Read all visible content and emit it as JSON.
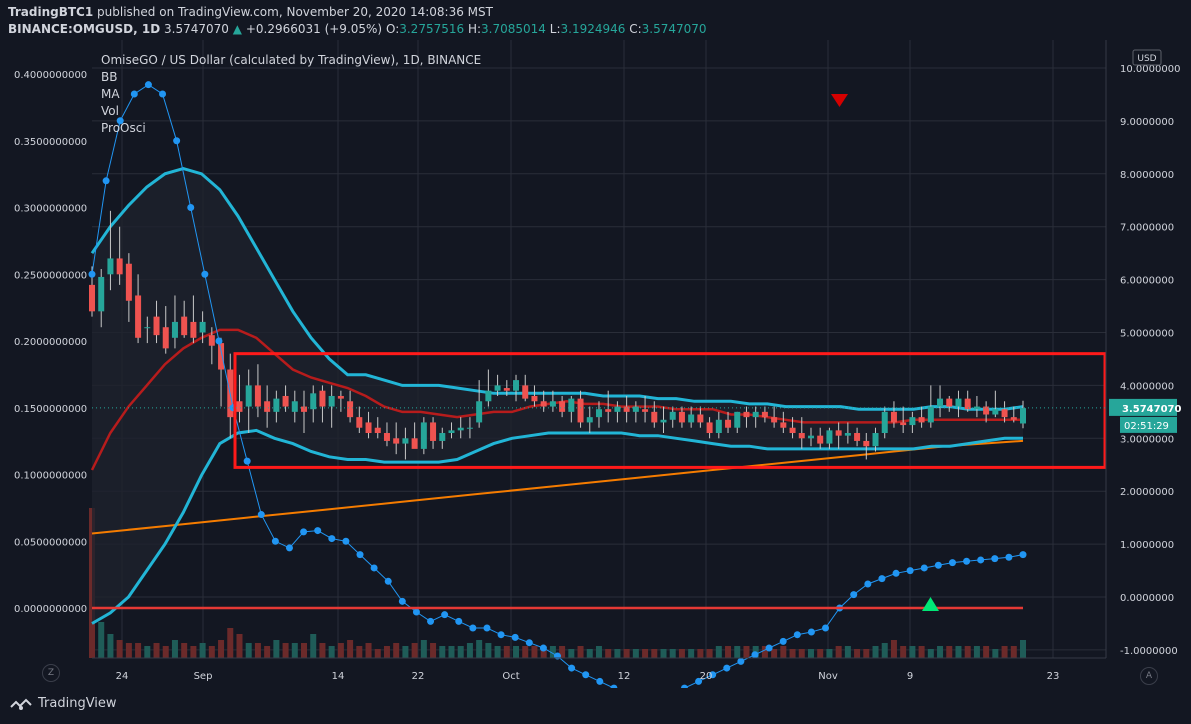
{
  "header": {
    "publisher": "TradingBTC1",
    "published_text": "published on TradingView.com, November 20, 2020 14:08:36 MST",
    "symbol": "BINANCE:OMGUSD, 1D",
    "last": "3.5747070",
    "change": "+0.2966031 (+9.05%)",
    "open_label": "O:",
    "open": "3.2757516",
    "high_label": "H:",
    "high": "3.7085014",
    "low_label": "L:",
    "low": "3.1924946",
    "close_label": "C:",
    "close": "3.5747070"
  },
  "overlay": {
    "title": "OmiseGO / US Dollar (calculated by TradingView), 1D, BINANCE",
    "indicators": [
      "BB",
      "MA",
      "Vol",
      "ProOsci"
    ]
  },
  "price_axis": {
    "currency": "USD",
    "ticks": [
      "10.0000000",
      "9.0000000",
      "8.0000000",
      "7.0000000",
      "6.0000000",
      "5.0000000",
      "4.0000000",
      "3.0000000",
      "2.0000000",
      "1.0000000",
      "0.0000000",
      "-1.0000000"
    ],
    "last_price_label": "3.5747070",
    "countdown": "02:51:29"
  },
  "osc_axis": {
    "ticks": [
      "0.4000000000",
      "0.3500000000",
      "0.3000000000",
      "0.2500000000",
      "0.2000000000",
      "0.1500000000",
      "0.1000000000",
      "0.0500000000",
      "0.0000000000"
    ]
  },
  "time_axis": {
    "ticks": [
      "24",
      "Sep",
      "14",
      "22",
      "Oct",
      "12",
      "20",
      "Nov",
      "9",
      "23"
    ]
  },
  "footer": {
    "brand": "TradingView",
    "left_btn": "Z",
    "right_btn": "A"
  },
  "colors": {
    "background": "#131722",
    "up": "#26a69a",
    "down": "#ef5350",
    "bb": "#22b5d6",
    "ma": "#b71c1c",
    "ma_long": "#f57c00",
    "oscillator": "#2196f3",
    "box": "#ff1a1a"
  },
  "chart_data": {
    "type": "candlestick",
    "x_dates": "2020-08-20 .. 2020-11-20 (daily)",
    "ylim": [
      -1.0,
      10.0
    ],
    "candles_ohlc": [
      [
        5.9,
        6.25,
        5.3,
        5.4
      ],
      [
        5.4,
        6.2,
        5.1,
        6.05
      ],
      [
        6.1,
        7.3,
        5.8,
        6.4
      ],
      [
        6.4,
        7.0,
        5.9,
        6.1
      ],
      [
        6.3,
        6.5,
        5.2,
        5.6
      ],
      [
        5.7,
        6.1,
        4.8,
        4.9
      ],
      [
        5.1,
        5.3,
        4.8,
        5.1
      ],
      [
        5.3,
        5.6,
        4.8,
        4.95
      ],
      [
        5.1,
        5.5,
        4.6,
        4.7
      ],
      [
        4.9,
        5.7,
        4.7,
        5.2
      ],
      [
        5.3,
        5.6,
        4.9,
        4.95
      ],
      [
        5.2,
        5.7,
        4.8,
        4.9
      ],
      [
        5.0,
        5.4,
        4.8,
        5.2
      ],
      [
        4.95,
        5.1,
        4.4,
        4.75
      ],
      [
        4.8,
        4.9,
        3.6,
        4.3
      ],
      [
        4.3,
        4.6,
        3.0,
        3.4
      ],
      [
        3.7,
        4.2,
        3.3,
        3.5
      ],
      [
        3.6,
        4.3,
        3.1,
        4.0
      ],
      [
        4.0,
        4.4,
        3.4,
        3.6
      ],
      [
        3.7,
        4.0,
        3.2,
        3.5
      ],
      [
        3.5,
        3.9,
        3.3,
        3.75
      ],
      [
        3.8,
        4.0,
        3.5,
        3.6
      ],
      [
        3.5,
        3.9,
        3.3,
        3.7
      ],
      [
        3.6,
        3.9,
        3.1,
        3.5
      ],
      [
        3.55,
        4.0,
        3.3,
        3.85
      ],
      [
        3.9,
        4.0,
        3.3,
        3.6
      ],
      [
        3.6,
        4.0,
        3.2,
        3.8
      ],
      [
        3.8,
        3.9,
        3.5,
        3.75
      ],
      [
        3.7,
        3.9,
        3.3,
        3.4
      ],
      [
        3.4,
        3.6,
        3.1,
        3.2
      ],
      [
        3.3,
        3.5,
        3.0,
        3.1
      ],
      [
        3.2,
        3.4,
        3.0,
        3.1
      ],
      [
        3.1,
        3.3,
        2.85,
        2.95
      ],
      [
        3.0,
        3.3,
        2.7,
        2.9
      ],
      [
        2.9,
        3.2,
        2.6,
        3.0
      ],
      [
        3.0,
        3.3,
        2.9,
        2.8
      ],
      [
        2.8,
        3.4,
        2.7,
        3.3
      ],
      [
        3.3,
        3.4,
        2.8,
        2.95
      ],
      [
        2.95,
        3.2,
        2.8,
        3.1
      ],
      [
        3.1,
        3.3,
        3.0,
        3.15
      ],
      [
        3.15,
        3.4,
        3.0,
        3.2
      ],
      [
        3.2,
        3.4,
        3.0,
        3.2
      ],
      [
        3.3,
        4.1,
        3.2,
        3.7
      ],
      [
        3.7,
        4.3,
        3.6,
        3.9
      ],
      [
        3.9,
        4.2,
        3.8,
        4.0
      ],
      [
        3.95,
        4.1,
        3.8,
        3.9
      ],
      [
        3.9,
        4.2,
        3.7,
        4.1
      ],
      [
        4.0,
        4.2,
        3.7,
        3.75
      ],
      [
        3.8,
        4.0,
        3.6,
        3.7
      ],
      [
        3.7,
        3.9,
        3.5,
        3.6
      ],
      [
        3.6,
        3.9,
        3.5,
        3.7
      ],
      [
        3.7,
        3.8,
        3.4,
        3.5
      ],
      [
        3.5,
        3.8,
        3.3,
        3.75
      ],
      [
        3.75,
        3.9,
        3.2,
        3.3
      ],
      [
        3.3,
        3.6,
        3.1,
        3.4
      ],
      [
        3.4,
        3.7,
        3.2,
        3.55
      ],
      [
        3.55,
        3.9,
        3.3,
        3.5
      ],
      [
        3.5,
        3.7,
        3.3,
        3.6
      ],
      [
        3.6,
        3.8,
        3.3,
        3.5
      ],
      [
        3.5,
        3.7,
        3.3,
        3.6
      ],
      [
        3.55,
        3.8,
        3.3,
        3.5
      ],
      [
        3.5,
        3.7,
        3.2,
        3.3
      ],
      [
        3.3,
        3.6,
        3.1,
        3.35
      ],
      [
        3.35,
        3.6,
        3.2,
        3.5
      ],
      [
        3.5,
        3.6,
        3.2,
        3.3
      ],
      [
        3.3,
        3.6,
        3.2,
        3.45
      ],
      [
        3.45,
        3.6,
        3.2,
        3.3
      ],
      [
        3.3,
        3.4,
        3.0,
        3.1
      ],
      [
        3.1,
        3.5,
        3.0,
        3.35
      ],
      [
        3.35,
        3.5,
        3.1,
        3.2
      ],
      [
        3.2,
        3.5,
        3.1,
        3.5
      ],
      [
        3.5,
        3.6,
        3.2,
        3.4
      ],
      [
        3.4,
        3.6,
        3.2,
        3.5
      ],
      [
        3.5,
        3.6,
        3.3,
        3.4
      ],
      [
        3.4,
        3.6,
        3.2,
        3.3
      ],
      [
        3.3,
        3.5,
        3.1,
        3.2
      ],
      [
        3.2,
        3.4,
        3.0,
        3.1
      ],
      [
        3.1,
        3.4,
        2.8,
        3.0
      ],
      [
        3.0,
        3.2,
        2.85,
        3.05
      ],
      [
        3.05,
        3.2,
        2.8,
        2.9
      ],
      [
        2.9,
        3.2,
        2.8,
        3.15
      ],
      [
        3.15,
        3.3,
        2.8,
        3.05
      ],
      [
        3.05,
        3.3,
        2.9,
        3.1
      ],
      [
        3.1,
        3.2,
        2.85,
        2.95
      ],
      [
        2.95,
        3.1,
        2.6,
        2.85
      ],
      [
        2.85,
        3.2,
        2.75,
        3.1
      ],
      [
        3.1,
        3.6,
        3.0,
        3.5
      ],
      [
        3.5,
        3.7,
        3.2,
        3.3
      ],
      [
        3.3,
        3.6,
        3.1,
        3.25
      ],
      [
        3.25,
        3.5,
        3.1,
        3.4
      ],
      [
        3.4,
        3.6,
        3.2,
        3.3
      ],
      [
        3.3,
        4.0,
        3.2,
        3.6
      ],
      [
        3.6,
        4.0,
        3.4,
        3.75
      ],
      [
        3.75,
        3.8,
        3.5,
        3.6
      ],
      [
        3.6,
        3.9,
        3.4,
        3.75
      ],
      [
        3.75,
        3.9,
        3.5,
        3.55
      ],
      [
        3.55,
        3.8,
        3.4,
        3.6
      ],
      [
        3.6,
        3.7,
        3.3,
        3.45
      ],
      [
        3.45,
        3.9,
        3.4,
        3.55
      ],
      [
        3.55,
        3.7,
        3.3,
        3.4
      ],
      [
        3.4,
        3.6,
        3.3,
        3.35
      ],
      [
        3.28,
        3.71,
        3.19,
        3.57
      ]
    ],
    "bollinger_upper": [
      6.5,
      7.0,
      7.4,
      7.75,
      8.0,
      8.1,
      8.0,
      7.7,
      7.2,
      6.6,
      6.0,
      5.4,
      4.9,
      4.5,
      4.2,
      4.2,
      4.1,
      4.0,
      4.0,
      4.0,
      3.95,
      3.9,
      3.85,
      3.85,
      3.85,
      3.85,
      3.85,
      3.85,
      3.8,
      3.8,
      3.8,
      3.75,
      3.75,
      3.7,
      3.7,
      3.7,
      3.65,
      3.65,
      3.6,
      3.6,
      3.6,
      3.6,
      3.55,
      3.55,
      3.55,
      3.55,
      3.6,
      3.6,
      3.55,
      3.55,
      3.55,
      3.6
    ],
    "bollinger_lower": [
      -0.5,
      -0.3,
      0.0,
      0.5,
      1.0,
      1.6,
      2.3,
      2.9,
      3.1,
      3.15,
      3.0,
      2.9,
      2.75,
      2.65,
      2.6,
      2.6,
      2.55,
      2.55,
      2.55,
      2.55,
      2.6,
      2.75,
      2.9,
      3.0,
      3.05,
      3.1,
      3.1,
      3.1,
      3.1,
      3.1,
      3.05,
      3.05,
      3.0,
      2.95,
      2.9,
      2.85,
      2.85,
      2.8,
      2.8,
      2.8,
      2.8,
      2.8,
      2.8,
      2.8,
      2.8,
      2.8,
      2.85,
      2.85,
      2.9,
      2.95,
      3.0,
      3.0
    ],
    "moving_average": [
      2.4,
      3.1,
      3.6,
      4.0,
      4.4,
      4.7,
      4.9,
      5.05,
      5.05,
      4.9,
      4.6,
      4.3,
      4.15,
      4.05,
      3.95,
      3.8,
      3.6,
      3.5,
      3.5,
      3.45,
      3.4,
      3.45,
      3.5,
      3.5,
      3.6,
      3.65,
      3.7,
      3.65,
      3.65,
      3.6,
      3.6,
      3.6,
      3.55,
      3.55,
      3.55,
      3.45,
      3.45,
      3.4,
      3.35,
      3.3,
      3.3,
      3.3,
      3.3,
      3.3,
      3.3,
      3.35,
      3.35,
      3.35,
      3.35,
      3.35,
      3.35,
      3.35
    ],
    "moving_average_long": [
      1.2,
      1.35,
      1.5,
      1.65,
      1.8,
      1.95,
      2.1,
      2.25,
      2.4,
      2.55,
      2.7,
      2.85,
      2.95
    ],
    "oscillator": [
      0.25,
      0.32,
      0.365,
      0.385,
      0.392,
      0.385,
      0.35,
      0.3,
      0.25,
      0.2,
      0.15,
      0.11,
      0.07,
      0.05,
      0.045,
      0.057,
      0.058,
      0.052,
      0.05,
      0.04,
      0.03,
      0.02,
      0.005,
      -0.003,
      -0.01,
      -0.005,
      -0.01,
      -0.015,
      -0.015,
      -0.02,
      -0.022,
      -0.026,
      -0.03,
      -0.036,
      -0.045,
      -0.05,
      -0.055,
      -0.06,
      -0.065,
      -0.07,
      -0.068,
      -0.063,
      -0.06,
      -0.055,
      -0.05,
      -0.045,
      -0.04,
      -0.035,
      -0.03,
      -0.025,
      -0.02,
      -0.018,
      -0.015,
      0.0,
      0.01,
      0.018,
      0.022,
      0.026,
      0.028,
      0.03,
      0.032,
      0.034,
      0.035,
      0.036,
      0.037,
      0.038,
      0.04
    ],
    "oscillator_zero_line": 0.0,
    "range_box_price": [
      2.45,
      4.6
    ],
    "signals": [
      {
        "type": "sell",
        "marker": "down-triangle"
      },
      {
        "type": "buy",
        "marker": "up-triangle"
      }
    ],
    "volume_relative": [
      0.5,
      0.12,
      0.08,
      0.06,
      0.05,
      0.05,
      0.04,
      0.05,
      0.04,
      0.06,
      0.05,
      0.04,
      0.05,
      0.04,
      0.06,
      0.1,
      0.08,
      0.05,
      0.05,
      0.04,
      0.06,
      0.05,
      0.05,
      0.05,
      0.08,
      0.05,
      0.04,
      0.05,
      0.06,
      0.04,
      0.05,
      0.03,
      0.04,
      0.05,
      0.04,
      0.05,
      0.06,
      0.05,
      0.04,
      0.04,
      0.04,
      0.05,
      0.06,
      0.05,
      0.04,
      0.04,
      0.04,
      0.04,
      0.04,
      0.04,
      0.04,
      0.04,
      0.03,
      0.04,
      0.03,
      0.04,
      0.03,
      0.03,
      0.03,
      0.03,
      0.03,
      0.03,
      0.03,
      0.03,
      0.03,
      0.03,
      0.03,
      0.03,
      0.04,
      0.04,
      0.04,
      0.04,
      0.04,
      0.04,
      0.03,
      0.04,
      0.03,
      0.03,
      0.03,
      0.03,
      0.03,
      0.04,
      0.04,
      0.03,
      0.03,
      0.04,
      0.05,
      0.06,
      0.04,
      0.04,
      0.04,
      0.03,
      0.04,
      0.04,
      0.04,
      0.04,
      0.04,
      0.04,
      0.03,
      0.04,
      0.04,
      0.06
    ]
  }
}
